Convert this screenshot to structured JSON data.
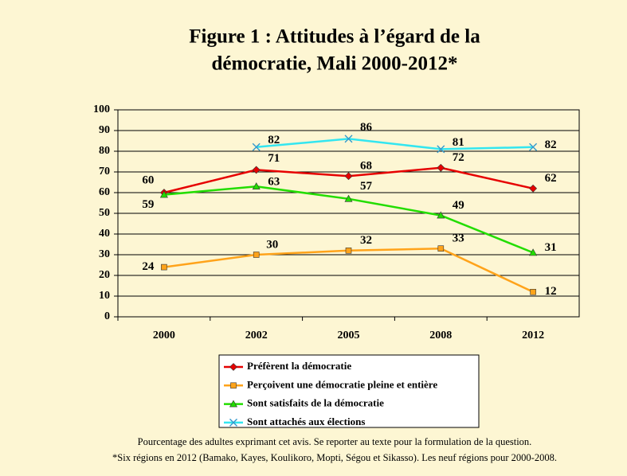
{
  "chart_data": {
    "type": "line",
    "title": [
      "Figure 1 : Attitudes à l’égard de la",
      "démocratie, Mali 2000-2012*"
    ],
    "categories": [
      "2000",
      "2002",
      "2005",
      "2008",
      "2012"
    ],
    "series": [
      {
        "name": "Préfèrent la démocratie",
        "color": "#e60000",
        "marker": "diamond",
        "values": [
          60,
          71,
          68,
          72,
          62
        ]
      },
      {
        "name": "Perçoivent une démocratie pleine et entière",
        "color": "#ffa31a",
        "marker": "square",
        "values": [
          24,
          30,
          32,
          33,
          12
        ]
      },
      {
        "name": "Sont satisfaits de la démocratie",
        "color": "#22dd00",
        "marker": "triangle",
        "values": [
          59,
          63,
          57,
          49,
          31
        ]
      },
      {
        "name": "Sont attachés aux élections",
        "color": "#33e6f0",
        "marker": "x",
        "values": [
          null,
          82,
          86,
          81,
          82
        ]
      }
    ],
    "ylim": [
      0,
      100
    ],
    "yticks": [
      0,
      10,
      20,
      30,
      40,
      50,
      60,
      70,
      80,
      90,
      100
    ],
    "grid": true,
    "notes": [
      "Pourcentage des adultes exprimant cet avis. Se reporter au texte pour la formulation de la question.",
      "*Six régions en 2012 (Bamako, Kayes, Koulikoro, Mopti, Ségou et Sikasso). Les neuf régions pour 2000-2008."
    ]
  }
}
